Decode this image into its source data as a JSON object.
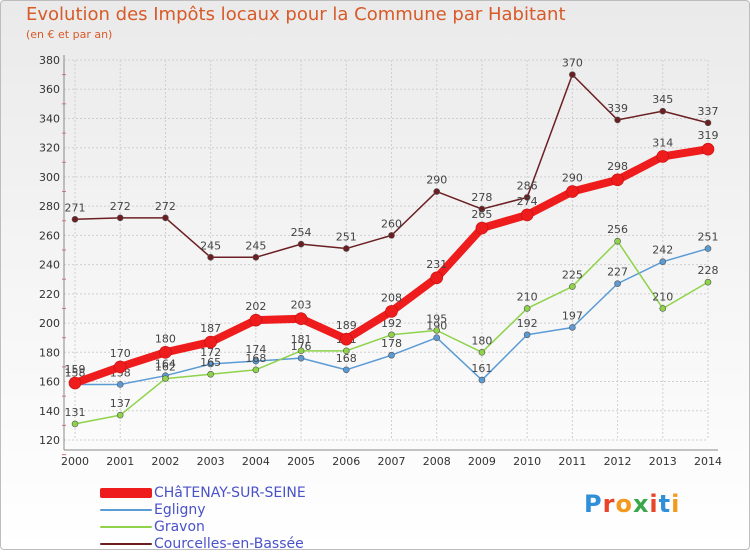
{
  "title": "Evolution des Impôts locaux pour la Commune par Habitant",
  "subtitle": "(en € et par an)",
  "logo_text": "Proxiti",
  "chart_data": {
    "type": "line",
    "title": "Evolution des Impôts locaux pour la Commune par Habitant",
    "ylabel": "(en € et par an)",
    "ylim": [
      120,
      380
    ],
    "yticks": [
      120,
      140,
      160,
      180,
      200,
      220,
      240,
      260,
      280,
      300,
      320,
      340,
      360,
      380
    ],
    "x": [
      "2000",
      "2001",
      "2002",
      "2003",
      "2004",
      "2005",
      "2006",
      "2007",
      "2008",
      "2009",
      "2010",
      "2011",
      "2012",
      "2013",
      "2014"
    ],
    "series": [
      {
        "name": "Courcelles-en-Bassée",
        "color": "#6b1f23",
        "values": [
          271,
          272,
          272,
          245,
          245,
          254,
          251,
          260,
          290,
          278,
          286,
          370,
          339,
          345,
          337
        ]
      },
      {
        "name": "Egligny",
        "color": "#5b9bd5",
        "values": [
          158,
          158,
          164,
          172,
          174,
          176,
          168,
          178,
          190,
          161,
          192,
          197,
          227,
          242,
          251
        ]
      },
      {
        "name": "Gravon",
        "color": "#8ed34a",
        "values": [
          131,
          137,
          162,
          165,
          168,
          181,
          181,
          192,
          195,
          180,
          210,
          225,
          256,
          210,
          228
        ]
      },
      {
        "name": "CHâTENAY-SUR-SEINE",
        "color": "#ee1c1c",
        "values": [
          159,
          170,
          180,
          187,
          202,
          203,
          189,
          208,
          231,
          265,
          274,
          290,
          298,
          314,
          319
        ]
      }
    ],
    "legend": [
      "CHâTENAY-SUR-SEINE",
      "Egligny",
      "Gravon",
      "Courcelles-en-Bassée"
    ]
  }
}
